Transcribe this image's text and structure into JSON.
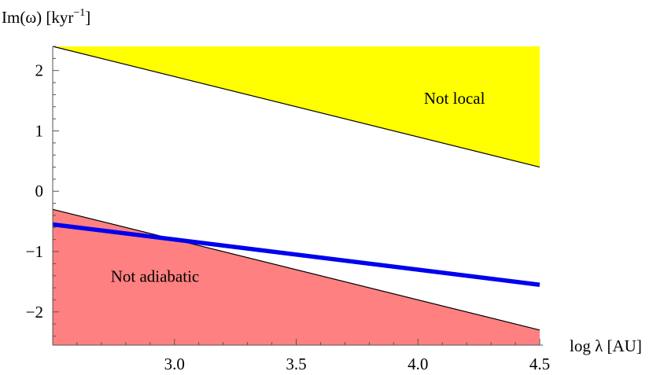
{
  "chart_data": {
    "type": "area",
    "ylabel": "Im(ω) [kyr",
    "ylabel_sup": "−1",
    "ylabel_tail": "]",
    "xlabel": "log λ [AU]",
    "xlim": [
      2.5,
      4.5
    ],
    "ylim": [
      -2.55,
      2.4
    ],
    "x_ticks": [
      3.0,
      3.5,
      4.0,
      4.5
    ],
    "x_tick_labels": [
      "3.0",
      "3.5",
      "4.0",
      "4.5"
    ],
    "y_ticks": [
      2,
      1,
      0,
      -1,
      -2
    ],
    "y_tick_labels": [
      "2",
      "1",
      "0",
      "−1",
      "−2"
    ],
    "grid": false,
    "series": [
      {
        "role": "upper-boundary",
        "x": [
          2.5,
          4.5
        ],
        "y": [
          2.4,
          0.4
        ],
        "color": "#000000"
      },
      {
        "role": "lower-boundary",
        "x": [
          2.5,
          4.5
        ],
        "y": [
          -0.3,
          -2.3
        ],
        "color": "#000000"
      },
      {
        "role": "growth-rate",
        "x": [
          2.5,
          4.5
        ],
        "y": [
          -0.55,
          -1.55
        ],
        "color": "#0000ee"
      }
    ],
    "regions": [
      {
        "label": "Not local",
        "fill": "#ffff00",
        "label_at": [
          4.15,
          1.45
        ]
      },
      {
        "label": "Not adiabatic",
        "fill": "#ff8080",
        "label_at": [
          2.92,
          -1.5
        ]
      }
    ]
  }
}
